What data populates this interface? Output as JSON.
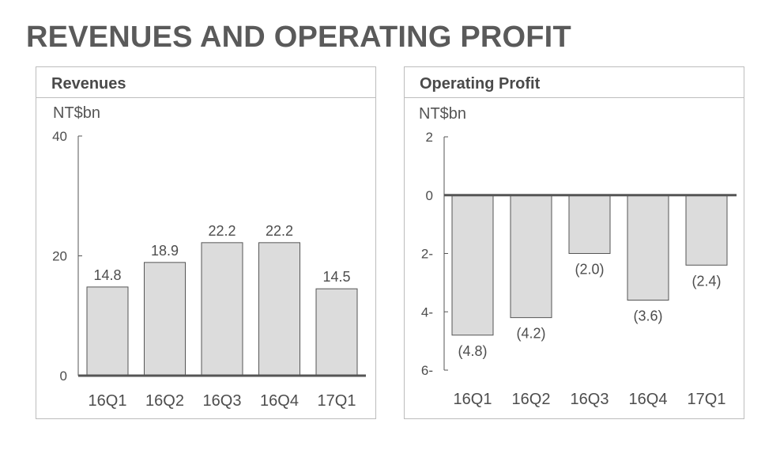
{
  "page": {
    "title": "REVENUES AND OPERATING PROFIT"
  },
  "colors": {
    "bar_fill": "#dcdcdc",
    "bar_stroke": "#555555",
    "axis": "#555555",
    "text": "#4d4d4d"
  },
  "chart_data": [
    {
      "type": "bar",
      "title": "Revenues",
      "ylabel": "NT$bn",
      "categories": [
        "16Q1",
        "16Q2",
        "16Q3",
        "16Q4",
        "17Q1"
      ],
      "values": [
        14.8,
        18.9,
        22.2,
        22.2,
        14.5
      ],
      "data_labels": [
        "14.8",
        "18.9",
        "22.2",
        "22.2",
        "14.5"
      ],
      "ylim": [
        0,
        40
      ],
      "yticks": [
        0,
        20,
        40
      ],
      "ytick_labels": [
        "0",
        "20",
        "40"
      ],
      "grid": false,
      "legend": "none"
    },
    {
      "type": "bar",
      "title": "Operating Profit",
      "ylabel": "NT$bn",
      "categories": [
        "16Q1",
        "16Q2",
        "16Q3",
        "16Q4",
        "17Q1"
      ],
      "values": [
        -4.8,
        -4.2,
        -2.0,
        -3.6,
        -2.4
      ],
      "data_labels": [
        "(4.8)",
        "(4.2)",
        "(2.0)",
        "(3.6)",
        "(2.4)"
      ],
      "ylim": [
        -6,
        2
      ],
      "yticks": [
        2,
        0,
        -2,
        -4,
        -6
      ],
      "ytick_labels": [
        "2",
        "0",
        "2-",
        "4-",
        "6-"
      ],
      "grid": false,
      "legend": "none"
    }
  ]
}
